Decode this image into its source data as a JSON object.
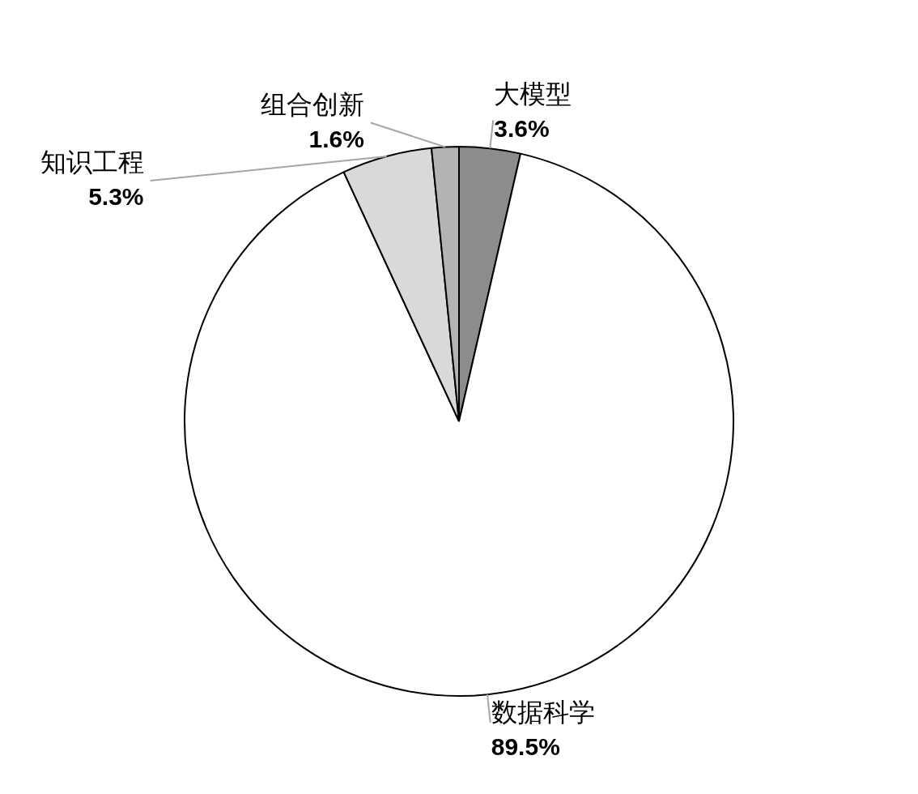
{
  "chart_data": {
    "type": "pie",
    "categories": [
      "大模型",
      "数据科学",
      "知识工程",
      "组合创新"
    ],
    "values": [
      3.6,
      89.5,
      5.3,
      1.6
    ],
    "colors": [
      "#8c8c8c",
      "#ffffff",
      "#d9d9d9",
      "#b3b3b3"
    ],
    "value_labels": [
      "3.6%",
      "89.5%",
      "5.3%",
      "1.6%"
    ]
  }
}
